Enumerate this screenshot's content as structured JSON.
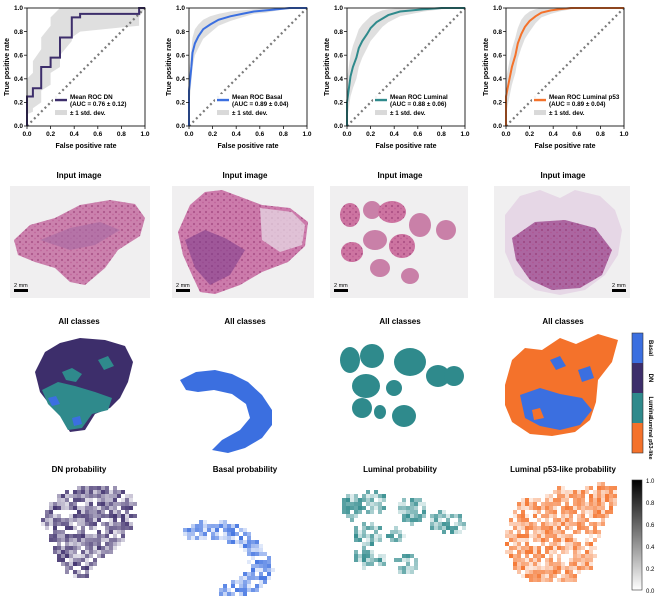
{
  "colors": {
    "dn": "#3d2e6b",
    "basal": "#3b6fe0",
    "luminal": "#2f8a8c",
    "luminal_p53": "#f4722b",
    "band": "#d9d9d9",
    "diag": "#7a7a7a"
  },
  "roc_axes": {
    "xlabel": "False positive rate",
    "ylabel": "True positive rate",
    "ticks": [
      "0.0",
      "0.2",
      "0.4",
      "0.6",
      "0.8",
      "1.0"
    ],
    "band_label": "± 1 std. dev."
  },
  "chart_data": [
    {
      "type": "line",
      "title": "Mean ROC DN",
      "legend_line1": "Mean ROC DN",
      "legend_line2": "(AUC = 0.76 ± 0.12)",
      "xlim": [
        0,
        1
      ],
      "ylim": [
        0,
        1
      ],
      "x": [
        0.0,
        0.0,
        0.05,
        0.05,
        0.12,
        0.12,
        0.2,
        0.2,
        0.28,
        0.28,
        0.38,
        0.38,
        0.45,
        0.45,
        0.95,
        0.95,
        1.0
      ],
      "y": [
        0.0,
        0.25,
        0.25,
        0.32,
        0.32,
        0.5,
        0.5,
        0.58,
        0.58,
        0.75,
        0.75,
        0.92,
        0.92,
        0.95,
        0.95,
        1.0,
        1.0
      ],
      "band_upper": [
        0.1,
        0.4,
        0.45,
        0.55,
        0.65,
        0.75,
        0.85,
        0.92,
        1.0,
        1.0,
        1.0,
        1.0,
        1.0,
        1.0,
        1.0,
        1.0,
        1.0
      ],
      "band_lower": [
        0.0,
        0.1,
        0.12,
        0.15,
        0.2,
        0.3,
        0.35,
        0.45,
        0.5,
        0.6,
        0.72,
        0.75,
        0.8,
        0.8,
        0.85,
        0.92,
        1.0
      ]
    },
    {
      "type": "line",
      "title": "Mean ROC Basal",
      "legend_line1": "Mean ROC Basal",
      "legend_line2": "(AUC = 0.89 ± 0.04)",
      "xlim": [
        0,
        1
      ],
      "ylim": [
        0,
        1
      ],
      "x": [
        0.0,
        0.0,
        0.02,
        0.03,
        0.05,
        0.08,
        0.12,
        0.18,
        0.25,
        0.35,
        0.45,
        0.55,
        0.65,
        0.75,
        0.85,
        0.95,
        1.0
      ],
      "y": [
        0.0,
        0.3,
        0.5,
        0.62,
        0.7,
        0.76,
        0.82,
        0.86,
        0.9,
        0.93,
        0.95,
        0.97,
        0.98,
        0.99,
        1.0,
        1.0,
        1.0
      ],
      "band_upper": [
        0.02,
        0.45,
        0.65,
        0.75,
        0.82,
        0.86,
        0.9,
        0.93,
        0.95,
        0.97,
        0.98,
        0.99,
        1.0,
        1.0,
        1.0,
        1.0,
        1.0
      ],
      "band_lower": [
        0.0,
        0.15,
        0.38,
        0.5,
        0.6,
        0.66,
        0.74,
        0.79,
        0.85,
        0.89,
        0.92,
        0.95,
        0.96,
        0.98,
        0.99,
        1.0,
        1.0
      ]
    },
    {
      "type": "line",
      "title": "Mean ROC Luminal",
      "legend_line1": "Mean ROC Luminal",
      "legend_line2": "(AUC = 0.88 ± 0.06)",
      "xlim": [
        0,
        1
      ],
      "ylim": [
        0,
        1
      ],
      "x": [
        0.0,
        0.0,
        0.03,
        0.05,
        0.08,
        0.1,
        0.13,
        0.17,
        0.2,
        0.25,
        0.3,
        0.35,
        0.45,
        0.55,
        0.65,
        0.8,
        1.0
      ],
      "y": [
        0.0,
        0.2,
        0.42,
        0.5,
        0.58,
        0.66,
        0.72,
        0.78,
        0.83,
        0.88,
        0.91,
        0.94,
        0.97,
        0.98,
        0.99,
        1.0,
        1.0
      ],
      "band_upper": [
        0.05,
        0.4,
        0.6,
        0.68,
        0.76,
        0.82,
        0.86,
        0.9,
        0.93,
        0.96,
        0.98,
        0.99,
        1.0,
        1.0,
        1.0,
        1.0,
        1.0
      ],
      "band_lower": [
        0.0,
        0.05,
        0.25,
        0.32,
        0.4,
        0.5,
        0.58,
        0.66,
        0.72,
        0.78,
        0.84,
        0.88,
        0.93,
        0.95,
        0.97,
        0.99,
        1.0
      ]
    },
    {
      "type": "line",
      "title": "Mean ROC Luminal p53",
      "legend_line1": "Mean ROC Luminal p53",
      "legend_line2": "(AUC = 0.89 ± 0.04)",
      "xlim": [
        0,
        1
      ],
      "ylim": [
        0,
        1
      ],
      "x": [
        0.0,
        0.0,
        0.03,
        0.05,
        0.08,
        0.1,
        0.13,
        0.16,
        0.2,
        0.25,
        0.3,
        0.38,
        0.45,
        0.55,
        0.7,
        0.85,
        1.0
      ],
      "y": [
        0.0,
        0.25,
        0.4,
        0.5,
        0.6,
        0.7,
        0.78,
        0.84,
        0.89,
        0.93,
        0.96,
        0.98,
        0.99,
        1.0,
        1.0,
        1.0,
        1.0
      ],
      "band_upper": [
        0.05,
        0.4,
        0.55,
        0.65,
        0.75,
        0.83,
        0.9,
        0.94,
        0.97,
        0.99,
        1.0,
        1.0,
        1.0,
        1.0,
        1.0,
        1.0,
        1.0
      ],
      "band_lower": [
        0.0,
        0.1,
        0.25,
        0.35,
        0.45,
        0.57,
        0.66,
        0.74,
        0.8,
        0.87,
        0.92,
        0.95,
        0.97,
        0.99,
        1.0,
        1.0,
        1.0
      ]
    }
  ],
  "row_titles": {
    "input": "Input image",
    "all_classes": "All classes",
    "prob": [
      "DN probability",
      "Basal probability",
      "Luminal probability",
      "Luminal p53-like probability"
    ]
  },
  "scale_bar": "2 mm",
  "class_legend": [
    "Basal",
    "DN",
    "Luminal",
    "Luminal p53-like"
  ],
  "prob_colorbar_ticks": [
    "1.0",
    "0.8",
    "0.6",
    "0.4",
    "0.2",
    "0.0"
  ]
}
